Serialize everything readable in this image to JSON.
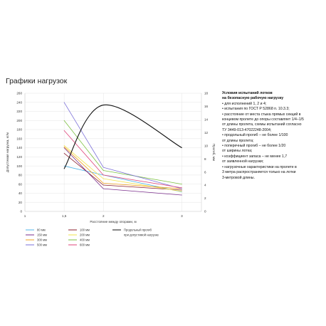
{
  "page": {
    "title": "Графики нагрузок"
  },
  "side_panel": {
    "title_lines": [
      "Условия испытаний лотков",
      "на безопасную рабочую нагрузку"
    ],
    "lines": [
      "• для исполнений 1, 2 и 4;",
      "• испытания по ГОСТ Р 52868 п. 10.3.3;",
      "• расстояние от места стыка прямых секций в",
      "концевом пролете до опоры составляет 1/4–1/5",
      "от длины пролета, схемы испытаний согласно",
      "ТУ 3449-013-47022248-2004;",
      "• продольный прогиб – не более 1/100",
      "от длины пролета;",
      "• поперечный прогиб – не более 1/20",
      "от ширины лотка;",
      "• коэффициент запаса – не менее 1,7",
      "от заявленной нагрузки;",
      "• нагрузочные характеристики на пролете в",
      "3 метра распространяется только на лотки",
      "3-метровой длины."
    ]
  },
  "chart_data": {
    "type": "line",
    "xlabel": "Расстояние между опорами, м",
    "ylabel": "Допустимая нагрузка, кг/м",
    "y2label": "Прогиб, мм",
    "xlim": [
      1,
      3.25
    ],
    "ylim": [
      0,
      260
    ],
    "y2lim": [
      0,
      18
    ],
    "xticks": [
      1,
      1.5,
      2,
      3
    ],
    "xtick_labels": [
      "1",
      "1,5",
      "2",
      "3"
    ],
    "yticks": [
      0,
      20,
      40,
      60,
      80,
      100,
      120,
      140,
      160,
      180,
      200,
      220,
      240,
      260
    ],
    "y2ticks": [
      0,
      2,
      4,
      6,
      8,
      10,
      12,
      14,
      16,
      18
    ],
    "grid": true,
    "series": [
      {
        "name": "80 мм",
        "color": "#4fb3e8",
        "x": [
          1.5,
          2,
          3
        ],
        "y": [
          100,
          80,
          43
        ]
      },
      {
        "name": "100 мм",
        "color": "#8a1c2b",
        "x": [
          1.5,
          2,
          3
        ],
        "y": [
          128,
          58,
          47
        ]
      },
      {
        "name": "150 мм",
        "color": "#7a2e8c",
        "x": [
          1.5,
          2,
          3
        ],
        "y": [
          140,
          50,
          36
        ]
      },
      {
        "name": "200 мм",
        "color": "#f2e34a",
        "x": [
          1.5,
          2,
          3
        ],
        "y": [
          145,
          72,
          44
        ]
      },
      {
        "name": "300 мм",
        "color": "#f0a020",
        "x": [
          1.5,
          2,
          3
        ],
        "y": [
          142,
          62,
          50
        ]
      },
      {
        "name": "400 мм",
        "color": "#7dc142",
        "x": [
          1.5,
          2,
          3
        ],
        "y": [
          200,
          90,
          60
        ]
      },
      {
        "name": "500 мм",
        "color": "#7b6fd8",
        "x": [
          1.5,
          2,
          3
        ],
        "y": [
          240,
          97,
          50
        ]
      },
      {
        "name": "600 мм",
        "color": "#e0457b",
        "x": [
          1.5,
          2,
          3
        ],
        "y": [
          178,
          80,
          52
        ]
      },
      {
        "name": "Продольный прогиб при допустимой нагрузке",
        "color": "#111111",
        "axis": "right",
        "x": [
          1.5,
          2,
          3
        ],
        "y": [
          6.5,
          16.2,
          9.7
        ]
      }
    ],
    "legend": {
      "placement": "bottom",
      "items": [
        {
          "label": "80 мм",
          "color": "#4fb3e8"
        },
        {
          "label": "100 мм",
          "color": "#8a1c2b"
        },
        {
          "label": "150 мм",
          "color": "#7a2e8c"
        },
        {
          "label": "200 мм",
          "color": "#f2e34a"
        },
        {
          "label": "300 мм",
          "color": "#f0a020"
        },
        {
          "label": "400 мм",
          "color": "#7dc142"
        },
        {
          "label": "500 мм",
          "color": "#7b6fd8"
        },
        {
          "label": "600 мм",
          "color": "#e0457b"
        }
      ],
      "deflection_label_lines": [
        "Продольный прогиб",
        "при допустимой нагрузке"
      ]
    }
  }
}
